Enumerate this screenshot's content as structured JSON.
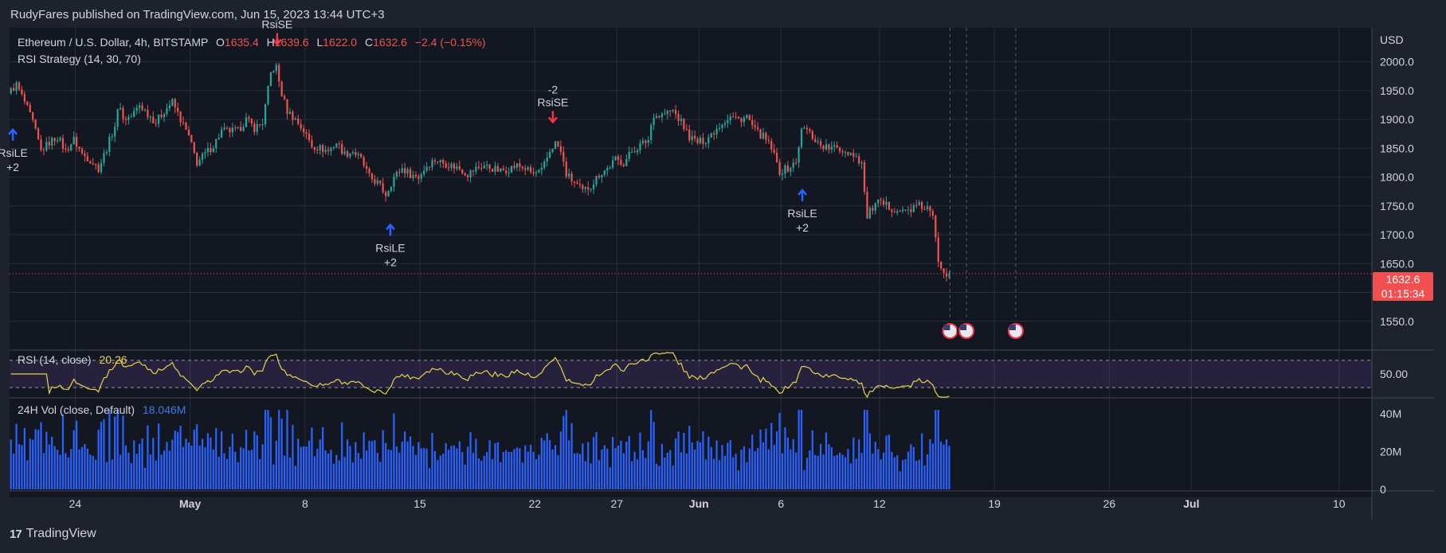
{
  "header": {
    "published": "RudyFares published on TradingView.com, Jun 15, 2023 13:44 UTC+3"
  },
  "legend": {
    "symbol": "Ethereum / U.S. Dollar, 4h, BITSTAMP",
    "o_label": "O",
    "o_value": "1635.4",
    "h_label": "H",
    "h_value": "1639.6",
    "l_label": "L",
    "l_value": "1622.0",
    "c_label": "C",
    "c_value": "1632.6",
    "change": "−2.4 (−0.15%)",
    "strategy": "RSI Strategy (14, 30, 70)",
    "rsi_title": "RSI (14, close)",
    "rsi_value": "20.26",
    "vol_title": "24H Vol (close, Default)",
    "vol_value": "18.046M"
  },
  "price_badge": {
    "price": "1632.6",
    "countdown": "01:15:34"
  },
  "footer": {
    "brand": "TradingView",
    "logo": "17"
  },
  "chart_data": {
    "type": "candlestick",
    "currency": "USD",
    "y_axis": {
      "label": "USD",
      "ticks": [
        2000,
        1950,
        1900,
        1850,
        1800,
        1750,
        1700,
        1650,
        1550
      ],
      "tick_labels": [
        "2000.0",
        "1950.0",
        "1900.0",
        "1850.0",
        "1800.0",
        "1750.0",
        "1700.0",
        "1650.0",
        "1550.0"
      ],
      "range": [
        1500,
        2045
      ]
    },
    "x_axis": {
      "ticks": [
        {
          "label": "24",
          "day": 0
        },
        {
          "label": "May",
          "day": 7
        },
        {
          "label": "8",
          "day": 14
        },
        {
          "label": "15",
          "day": 21
        },
        {
          "label": "22",
          "day": 28
        },
        {
          "label": "27",
          "day": 33
        },
        {
          "label": "Jun",
          "day": 38
        },
        {
          "label": "6",
          "day": 43
        },
        {
          "label": "12",
          "day": 49
        },
        {
          "label": "19",
          "day": 56
        },
        {
          "label": "26",
          "day": 63
        },
        {
          "label": "Jul",
          "day": 68
        },
        {
          "label": "10",
          "day": 77
        }
      ],
      "start_day": -4,
      "end_day": 79
    },
    "price_path": [
      [
        -4,
        1945
      ],
      [
        -3.5,
        1960
      ],
      [
        -3,
        1930
      ],
      [
        -2.5,
        1895
      ],
      [
        -2,
        1845
      ],
      [
        -1.5,
        1860
      ],
      [
        -1,
        1870
      ],
      [
        -0.5,
        1845
      ],
      [
        0,
        1865
      ],
      [
        0.5,
        1840
      ],
      [
        1,
        1830
      ],
      [
        1.5,
        1815
      ],
      [
        2,
        1850
      ],
      [
        2.5,
        1890
      ],
      [
        2.8,
        1930
      ],
      [
        3,
        1900
      ],
      [
        3.5,
        1905
      ],
      [
        4,
        1925
      ],
      [
        4.5,
        1910
      ],
      [
        5,
        1895
      ],
      [
        5.5,
        1915
      ],
      [
        6,
        1930
      ],
      [
        6.5,
        1900
      ],
      [
        7,
        1870
      ],
      [
        7.5,
        1825
      ],
      [
        8,
        1840
      ],
      [
        8.5,
        1855
      ],
      [
        9,
        1880
      ],
      [
        9.5,
        1880
      ],
      [
        10,
        1880
      ],
      [
        10.5,
        1900
      ],
      [
        11,
        1885
      ],
      [
        11.5,
        1895
      ],
      [
        12,
        1980
      ],
      [
        12.3,
        1995
      ],
      [
        12.6,
        1950
      ],
      [
        13,
        1915
      ],
      [
        13.5,
        1900
      ],
      [
        14,
        1880
      ],
      [
        14.5,
        1855
      ],
      [
        15,
        1850
      ],
      [
        15.5,
        1845
      ],
      [
        16,
        1860
      ],
      [
        16.5,
        1840
      ],
      [
        17,
        1845
      ],
      [
        17.5,
        1830
      ],
      [
        18,
        1800
      ],
      [
        18.5,
        1790
      ],
      [
        19,
        1770
      ],
      [
        19.5,
        1800
      ],
      [
        20,
        1815
      ],
      [
        20.5,
        1805
      ],
      [
        21,
        1800
      ],
      [
        21.5,
        1820
      ],
      [
        22,
        1830
      ],
      [
        22.5,
        1825
      ],
      [
        23,
        1820
      ],
      [
        23.5,
        1815
      ],
      [
        24,
        1805
      ],
      [
        24.5,
        1815
      ],
      [
        25,
        1820
      ],
      [
        25.5,
        1815
      ],
      [
        26,
        1810
      ],
      [
        26.5,
        1815
      ],
      [
        27,
        1820
      ],
      [
        27.5,
        1815
      ],
      [
        28,
        1805
      ],
      [
        28.5,
        1810
      ],
      [
        29,
        1845
      ],
      [
        29.3,
        1860
      ],
      [
        29.6,
        1850
      ],
      [
        30,
        1805
      ],
      [
        30.5,
        1790
      ],
      [
        31,
        1775
      ],
      [
        31.5,
        1785
      ],
      [
        32,
        1805
      ],
      [
        32.5,
        1815
      ],
      [
        33,
        1830
      ],
      [
        33.5,
        1825
      ],
      [
        34,
        1845
      ],
      [
        34.5,
        1855
      ],
      [
        35,
        1865
      ],
      [
        35.3,
        1910
      ],
      [
        35.6,
        1905
      ],
      [
        36,
        1910
      ],
      [
        36.5,
        1915
      ],
      [
        37,
        1895
      ],
      [
        37.5,
        1870
      ],
      [
        38,
        1860
      ],
      [
        38.5,
        1865
      ],
      [
        39,
        1880
      ],
      [
        39.5,
        1895
      ],
      [
        40,
        1905
      ],
      [
        40.5,
        1900
      ],
      [
        41,
        1905
      ],
      [
        41.5,
        1880
      ],
      [
        42,
        1870
      ],
      [
        42.5,
        1850
      ],
      [
        43,
        1810
      ],
      [
        43.5,
        1815
      ],
      [
        44,
        1825
      ],
      [
        44.3,
        1880
      ],
      [
        44.6,
        1885
      ],
      [
        45,
        1870
      ],
      [
        45.5,
        1855
      ],
      [
        46,
        1850
      ],
      [
        46.5,
        1850
      ],
      [
        47,
        1845
      ],
      [
        47.5,
        1840
      ],
      [
        48,
        1825
      ],
      [
        48.3,
        1730
      ],
      [
        48.6,
        1745
      ],
      [
        49,
        1755
      ],
      [
        49.5,
        1750
      ],
      [
        50,
        1745
      ],
      [
        50.5,
        1740
      ],
      [
        51,
        1745
      ],
      [
        51.5,
        1750
      ],
      [
        52,
        1745
      ],
      [
        52.3,
        1735
      ],
      [
        52.7,
        1650
      ],
      [
        53,
        1640
      ],
      [
        53.2,
        1632.6
      ]
    ],
    "last_price": 1632.6,
    "signals": [
      {
        "label": "RsiLE",
        "qty": "+2",
        "day": -3.8,
        "side": "long",
        "price": 1910
      },
      {
        "label": "RsiSE",
        "qty": "",
        "day": 12.3,
        "side": "short",
        "price": 2000
      },
      {
        "label": "RsiLE",
        "qty": "+2",
        "day": 19.2,
        "side": "long",
        "price": 1745
      },
      {
        "label": "RsiSE",
        "qty": "-2",
        "day": 29.1,
        "side": "short",
        "price": 1865
      },
      {
        "label": "RsiLE",
        "qty": "+2",
        "day": 44.3,
        "side": "long",
        "price": 1805
      }
    ],
    "event_markers_days": [
      53.3,
      54.3,
      57.3
    ],
    "rsi": {
      "title": "RSI (14, close)",
      "value": 20.26,
      "tick_labels": [
        "50.00"
      ],
      "upper_band": 70,
      "lower_band": 30,
      "range": [
        15,
        85
      ]
    },
    "volume": {
      "title": "24H Vol (close, Default)",
      "value": "18.046M",
      "tick_labels": [
        "40M",
        "20M",
        "0"
      ],
      "range": [
        0,
        45
      ]
    }
  }
}
